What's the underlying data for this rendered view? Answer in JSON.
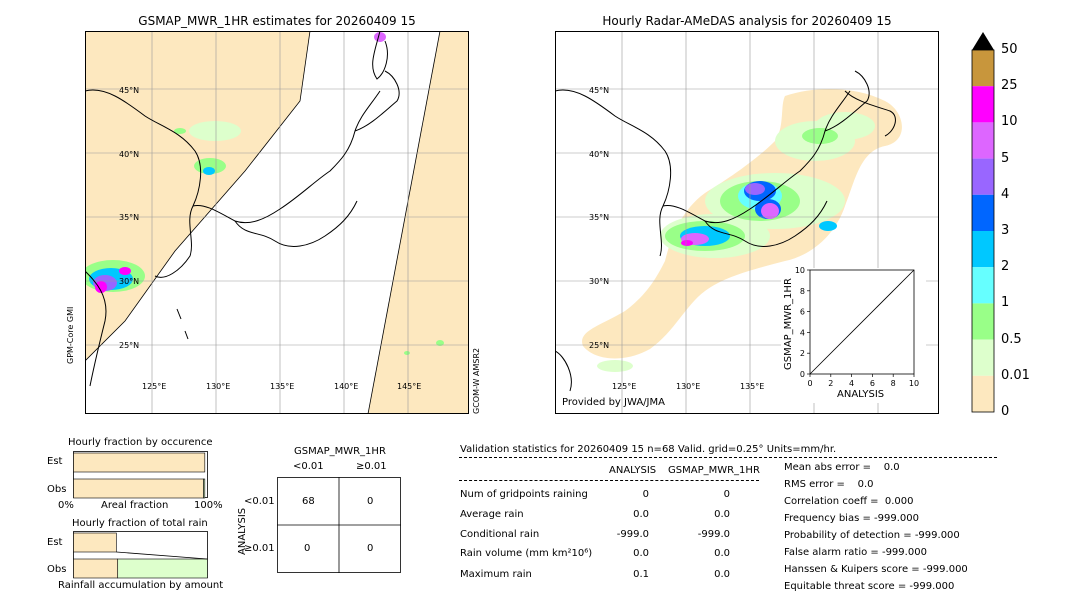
{
  "left_map": {
    "title": "GSMAP_MWR_1HR estimates for 20260409 15",
    "lat_labels": [
      "45°N",
      "40°N",
      "35°N",
      "30°N",
      "25°N"
    ],
    "lon_labels": [
      "125°E",
      "130°E",
      "135°E",
      "140°E",
      "145°E"
    ],
    "left_sat": "GPM-Core GMI",
    "right_sat": "GCOM-W AMSR2"
  },
  "right_map": {
    "title": "Hourly Radar-AMeDAS analysis for 20260409 15",
    "lat_labels": [
      "45°N",
      "40°N",
      "35°N",
      "30°N",
      "25°N"
    ],
    "lon_labels": [
      "125°E",
      "130°E",
      "135°E"
    ],
    "provider": "Provided by JWA/JMA"
  },
  "colorbar": {
    "labels": [
      "50",
      "25",
      "10",
      "5",
      "4",
      "3",
      "2",
      "1",
      "0.5",
      "0.01",
      "0"
    ],
    "colors": [
      "#c8963c",
      "#ff00ff",
      "#dd66ff",
      "#9966ff",
      "#0066ff",
      "#00c8ff",
      "#66ffff",
      "#99ff88",
      "#ddffcc",
      "#fde8bf"
    ],
    "extend_color": "#000000"
  },
  "chart_data": [
    {
      "type": "scatter",
      "title": "",
      "xlabel": "ANALYSIS",
      "ylabel": "GSMAP_MWR_1HR",
      "xlim": [
        0,
        10
      ],
      "ylim": [
        0,
        10
      ],
      "x_ticks": [
        "0",
        "2",
        "4",
        "6",
        "8",
        "10"
      ],
      "y_ticks": [
        "0",
        "2",
        "4",
        "6",
        "8",
        "10"
      ],
      "reference_line": [
        [
          0,
          0
        ],
        [
          10,
          10
        ]
      ],
      "points": []
    },
    {
      "type": "bar",
      "title": "Hourly fraction by occurence",
      "categories": [
        "Est",
        "Obs"
      ],
      "xlabel": "Areal fraction",
      "x_ticks": [
        "0%",
        "100%"
      ],
      "series": [
        {
          "values": [
            0.98,
            0.97
          ],
          "color": "#fde8bf"
        },
        {
          "values": [
            0.0,
            0.01
          ],
          "color": "#ddffcc"
        }
      ]
    },
    {
      "type": "bar",
      "title": "Hourly fraction of total rain",
      "categories": [
        "Est",
        "Obs"
      ],
      "xlabel": "Rainfall accumulation by amount",
      "series": [
        {
          "values": [
            0.32,
            0.33
          ],
          "color": "#fde8bf"
        },
        {
          "values": [
            0.0,
            0.67
          ],
          "color": "#ddffcc"
        }
      ]
    },
    {
      "type": "table",
      "title": "GSMAP_MWR_1HR",
      "col_headers": [
        "<0.01",
        "≥0.01"
      ],
      "row_label": "ANALYSIS",
      "row_headers": [
        "<0.01",
        "≥0.01"
      ],
      "cells": [
        [
          "68",
          "0"
        ],
        [
          "0",
          "0"
        ]
      ]
    }
  ],
  "validation": {
    "header": "Validation statistics for 20260409 15  n=68 Valid. grid=0.25° Units=mm/hr.",
    "col_analysis": "ANALYSIS",
    "col_gsmap": "GSMAP_MWR_1HR",
    "rows": [
      {
        "label": "Num of gridpoints raining",
        "analysis": "0",
        "gsmap": "0"
      },
      {
        "label": "Average rain",
        "analysis": "0.0",
        "gsmap": "0.0"
      },
      {
        "label": "Conditional rain",
        "analysis": "-999.0",
        "gsmap": "-999.0"
      },
      {
        "label": "Rain volume (mm km²10⁶)",
        "analysis": "0.0",
        "gsmap": "0.0"
      },
      {
        "label": "Maximum rain",
        "analysis": "0.1",
        "gsmap": "0.0"
      }
    ],
    "scores": [
      "Mean abs error =    0.0",
      "RMS error =    0.0",
      "Correlation coeff =  0.000",
      "Frequency bias = -999.000",
      "Probability of detection = -999.000",
      "False alarm ratio = -999.000",
      "Hanssen & Kuipers score = -999.000",
      "Equitable threat score = -999.000"
    ]
  }
}
